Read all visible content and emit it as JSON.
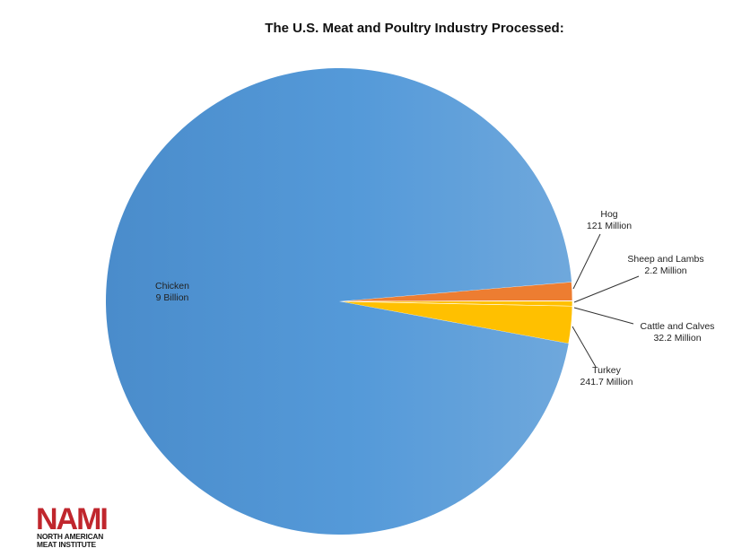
{
  "chart_data": {
    "type": "pie",
    "title": "The U.S. Meat and Poultry Industry Processed:",
    "slices": [
      {
        "name": "Chicken",
        "value": 9000,
        "value_label": "9 Billion",
        "color": "#5b9bd5"
      },
      {
        "name": "Hog",
        "value": 121,
        "value_label": "121 Million",
        "color": "#ed7d31"
      },
      {
        "name": "Sheep and Lambs",
        "value": 2.2,
        "value_label": "2.2 Million",
        "color": "#a5a5a5"
      },
      {
        "name": "Cattle and Calves",
        "value": 32.2,
        "value_label": "32.2 Million",
        "color": "#ffc000"
      },
      {
        "name": "Turkey",
        "value": 241.7,
        "value_label": "241.7 Million",
        "color": "#ffc000"
      }
    ],
    "value_unit": "million head",
    "legend": "none"
  },
  "logo": {
    "mark": "NAMI",
    "line1": "NORTH AMERICAN",
    "line2": "MEAT INSTITUTE",
    "color": "#c0262d"
  }
}
